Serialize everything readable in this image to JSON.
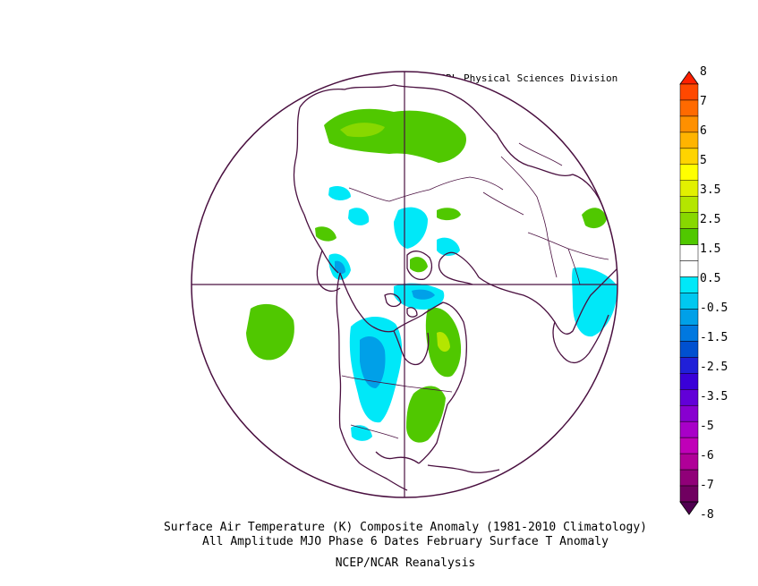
{
  "map": {
    "credit": "NOAA/ESRL Physical Sciences Division",
    "caption_line1": "Surface Air Temperature (K) Composite Anomaly (1981-2010 Climatology)",
    "caption_line2": "All Amplitude MJO Phase 6 Dates February Surface T Anomaly",
    "caption_line3": "NCEP/NCAR Reanalysis",
    "projection": "polar stereographic, north pole",
    "colorbar_labels": [
      "8",
      "7",
      "6",
      "5",
      "3.5",
      "2.5",
      "1.5",
      "0.5",
      "-0.5",
      "-1.5",
      "-2.5",
      "-3.5",
      "-5",
      "-6",
      "-7",
      "-8"
    ],
    "colorbar_colors": [
      "#ff2000",
      "#ff4800",
      "#ff6a00",
      "#ff9000",
      "#ffb400",
      "#ffd400",
      "#ffff00",
      "#e2f000",
      "#b4e600",
      "#88d800",
      "#50c800",
      "#ffffff",
      "#ffffff",
      "#00e8f8",
      "#00c8f0",
      "#00a0e8",
      "#0078e0",
      "#0050d0",
      "#2020d8",
      "#3a00d8",
      "#6200d8",
      "#8800d0",
      "#a800c8",
      "#c000b8",
      "#b00098",
      "#900078",
      "#700060",
      "#500050"
    ],
    "colors": {
      "warm_anomaly": "#50c800",
      "light_cold": "#00e8f8",
      "cold": "#00a0e8",
      "coast": "#4a1040"
    }
  }
}
